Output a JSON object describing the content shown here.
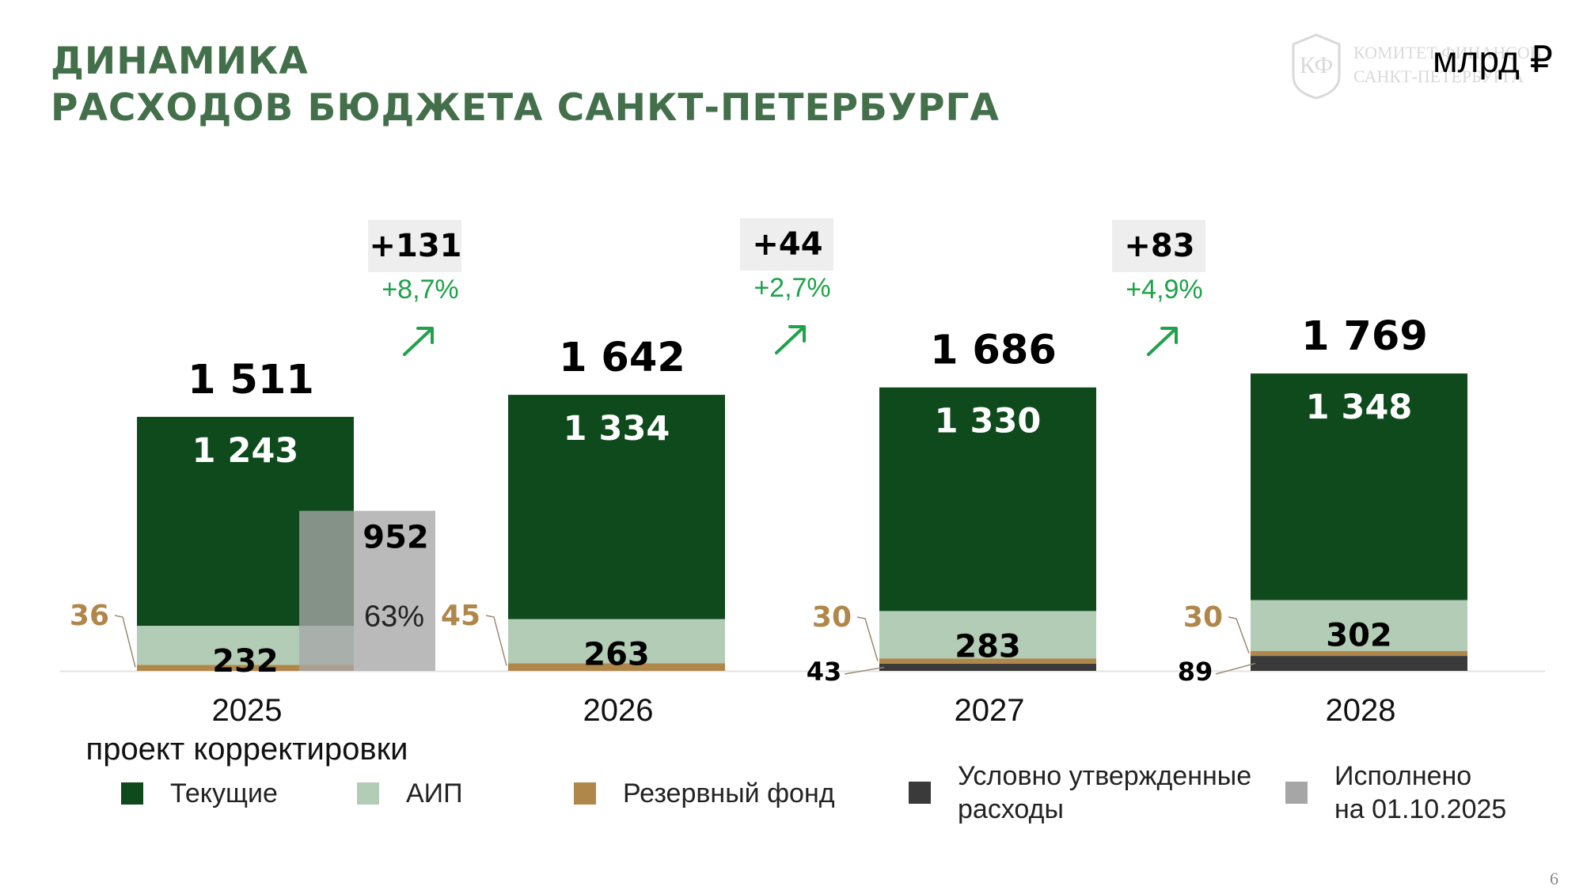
{
  "title": {
    "line1": "ДИНАМИКА",
    "line2": "РАСХОДОВ БЮДЖЕТА САНКТ-ПЕТЕРБУРГА"
  },
  "unit": "млрд ₽",
  "logo": {
    "monogram": "КФ",
    "line1": "КОМИТЕТ ФИНАНСОВ",
    "line2": "САНКТ-ПЕТЕРБУРГА"
  },
  "page_number": "6",
  "colors": {
    "current": "#0f4a1d",
    "aip": "#b3ccb5",
    "reserve": "#b0874a",
    "conditional": "#3a3a3a",
    "executed": "#a6a6a6",
    "title": "#43704a",
    "growth": "#1fa24a"
  },
  "chart_data": {
    "type": "bar",
    "stacked": true,
    "categories": [
      "2025",
      "2026",
      "2027",
      "2028"
    ],
    "category_sublabels": [
      "проект корректировки",
      "",
      "",
      ""
    ],
    "series": [
      {
        "name": "Текущие",
        "key": "current",
        "values": [
          1243,
          1334,
          1330,
          1348
        ]
      },
      {
        "name": "АИП",
        "key": "aip",
        "values": [
          232,
          263,
          283,
          302
        ]
      },
      {
        "name": "Резервный фонд",
        "key": "reserve",
        "values": [
          36,
          45,
          30,
          30
        ]
      },
      {
        "name": "Условно утвержденные расходы",
        "key": "conditional",
        "values": [
          0,
          0,
          43,
          89
        ]
      }
    ],
    "totals": [
      1511,
      1642,
      1686,
      1769
    ],
    "total_labels": [
      "1 511",
      "1 642",
      "1 686",
      "1 769"
    ],
    "current_labels": [
      "1 243",
      "1 334",
      "1 330",
      "1 348"
    ],
    "aip_labels": [
      "232",
      "263",
      "283",
      "302"
    ],
    "reserve_labels": [
      "36",
      "45",
      "30",
      "30"
    ],
    "conditional_labels": [
      "",
      "",
      "43",
      "89"
    ],
    "executed": {
      "name": "Исполнено на 01.10.2025",
      "value": 952,
      "label": "952",
      "share_label": "63%"
    },
    "growth": [
      {
        "abs": "+131",
        "pct": "+8,7%"
      },
      {
        "abs": "+44",
        "pct": "+2,7%"
      },
      {
        "abs": "+83",
        "pct": "+4,9%"
      }
    ]
  },
  "legend": [
    {
      "label": "Текущие",
      "color_key": "current"
    },
    {
      "label": "АИП",
      "color_key": "aip"
    },
    {
      "label": "Резервный фонд",
      "color_key": "reserve"
    },
    {
      "label": "Условно утвержденные",
      "label2": "расходы",
      "color_key": "conditional"
    },
    {
      "label": "Исполнено",
      "label2": "на 01.10.2025",
      "color_key": "executed"
    }
  ]
}
